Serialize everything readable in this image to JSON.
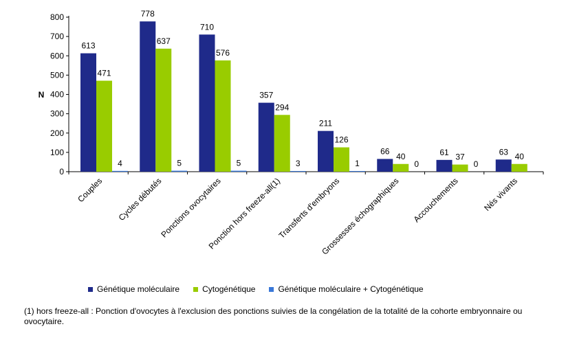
{
  "chart_data": {
    "type": "bar",
    "ylabel": "N",
    "ylim": [
      0,
      800
    ],
    "yticks": [
      0,
      100,
      200,
      300,
      400,
      500,
      600,
      700,
      800
    ],
    "categories": [
      "Couples",
      "Cycles débutés",
      "Ponctions ovocytaires",
      "Ponction hors freeze-all(1)",
      "Transferts d'embryons",
      "Grossesses échographiques",
      "Accouchements",
      "Nés vivants"
    ],
    "series": [
      {
        "name": "Génétique moléculaire",
        "color": "#1f2a8a",
        "values": [
          613,
          778,
          710,
          357,
          211,
          66,
          61,
          63
        ]
      },
      {
        "name": "Cytogénétique",
        "color": "#99cc00",
        "values": [
          471,
          637,
          576,
          294,
          126,
          40,
          37,
          40
        ]
      },
      {
        "name": "Génétique moléculaire + Cytogénétique",
        "color": "#3a78d8",
        "values": [
          4,
          5,
          5,
          3,
          1,
          0,
          0,
          null
        ]
      }
    ],
    "legend_position": "bottom",
    "grid": false
  },
  "footnote": "(1) hors freeze-all : Ponction d'ovocytes à l'exclusion des ponctions suivies de la congélation de la totalité de la cohorte embryonnaire ou ovocytaire."
}
